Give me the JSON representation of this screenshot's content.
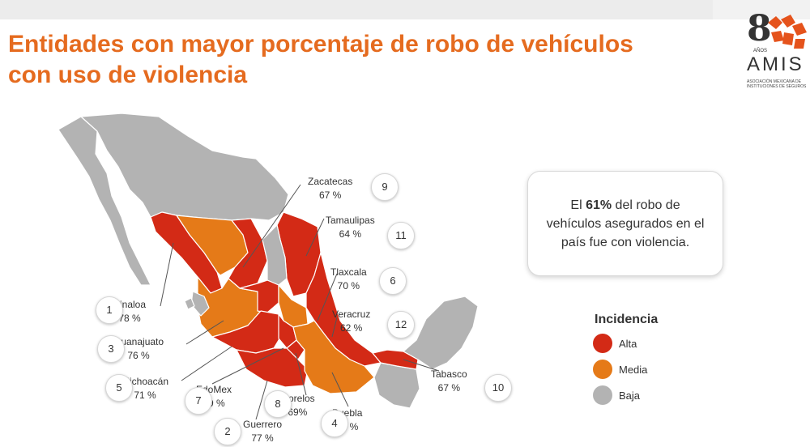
{
  "title": {
    "line1": "Entidades con mayor porcentaje de robo de vehículos",
    "line2": "con uso de violencia"
  },
  "logo": {
    "years": "8",
    "anos": "AÑOS",
    "name": "AMIS",
    "subtitle": "ASOCIACIÓN MEXICANA DE INSTITUCIONES DE SEGUROS"
  },
  "callout": {
    "before": "El ",
    "highlight": "61%",
    "after": " del robo de vehículos asegurados en el país fue con violencia."
  },
  "legend": {
    "title": "Incidencia",
    "items": [
      {
        "label": "Alta",
        "color": "#d32a16"
      },
      {
        "label": "Media",
        "color": "#e57a18"
      },
      {
        "label": "Baja",
        "color": "#b3b3b3"
      }
    ]
  },
  "colors": {
    "alta": "#d32a16",
    "media": "#e57a18",
    "baja": "#b3b3b3",
    "title": "#e56b1f"
  },
  "states": [
    {
      "rank": "1",
      "name": "Sinaloa",
      "value": "78 %"
    },
    {
      "rank": "3",
      "name": "Guanajuato",
      "value": "76 %"
    },
    {
      "rank": "5",
      "name": "Michoacán",
      "value": "71 %"
    },
    {
      "rank": "7",
      "name": "EdoMex",
      "value": "69 %"
    },
    {
      "rank": "2",
      "name": "Guerrero",
      "value": "77 %"
    },
    {
      "rank": "8",
      "name": "Morelos",
      "value": "69%"
    },
    {
      "rank": "4",
      "name": "Puebla",
      "value": "74 %"
    },
    {
      "rank": "10",
      "name": "Tabasco",
      "value": "67 %"
    },
    {
      "rank": "12",
      "name": "Veracruz",
      "value": "62 %"
    },
    {
      "rank": "6",
      "name": "Tlaxcala",
      "value": "70 %"
    },
    {
      "rank": "11",
      "name": "Tamaulipas",
      "value": "64 %"
    },
    {
      "rank": "9",
      "name": "Zacatecas",
      "value": "67 %"
    }
  ]
}
